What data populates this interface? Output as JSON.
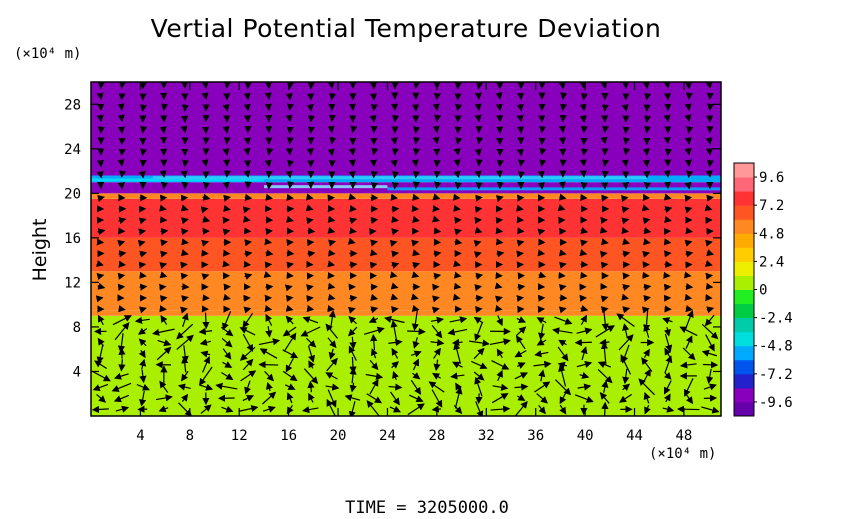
{
  "chart_data": {
    "type": "heatmap",
    "title": "Vertial Potential Temperature Deviation",
    "ylabel": "Height",
    "y_unit_label": "(×10⁴ m)",
    "x_unit_label": "(×10⁴ m)",
    "footer": "TIME = 3205000.0",
    "xlim": [
      0,
      51
    ],
    "ylim": [
      0,
      30
    ],
    "x_ticks": [
      "4",
      "8",
      "12",
      "16",
      "20",
      "24",
      "28",
      "32",
      "36",
      "40",
      "44",
      "48"
    ],
    "x_tick_values": [
      4,
      8,
      12,
      16,
      20,
      24,
      28,
      32,
      36,
      40,
      44,
      48
    ],
    "y_ticks": [
      "4",
      "8",
      "12",
      "16",
      "20",
      "24",
      "28"
    ],
    "y_tick_values": [
      4,
      8,
      12,
      16,
      20,
      24,
      28
    ],
    "colorbar": {
      "ticks": [
        "9.6",
        "7.2",
        "4.8",
        "2.4",
        "0",
        "-2.4",
        "-4.8",
        "-7.2",
        "-9.6"
      ],
      "tick_values": [
        9.6,
        7.2,
        4.8,
        2.4,
        0,
        -2.4,
        -4.8,
        -7.2,
        -9.6
      ],
      "range": [
        -10.8,
        10.8
      ],
      "colors": [
        "#6600aa",
        "#8800bb",
        "#2222cc",
        "#0055ee",
        "#00aaff",
        "#00dddd",
        "#00ccaa",
        "#00cc44",
        "#22ee22",
        "#aaee00",
        "#eeee00",
        "#ffcc00",
        "#ffaa00",
        "#ff8822",
        "#ff5522",
        "#ff3333",
        "#ff6677",
        "#ff9999"
      ]
    },
    "field_bands": [
      {
        "y_from": 0,
        "y_to": 9,
        "value": 1.0,
        "label": "green"
      },
      {
        "y_from": 9,
        "y_to": 9.5,
        "value": 4.8,
        "label": "yellow"
      },
      {
        "y_from": 9.5,
        "y_to": 13,
        "value": 5.8,
        "label": "orange"
      },
      {
        "y_from": 13,
        "y_to": 16,
        "value": 7.0,
        "label": "orange-red"
      },
      {
        "y_from": 16,
        "y_to": 19.5,
        "value": 8.0,
        "label": "red"
      },
      {
        "y_from": 19.5,
        "y_to": 20,
        "value": 4.8,
        "label": "yellow"
      },
      {
        "y_from": 20,
        "y_to": 21,
        "value": -9.6,
        "label": "purple"
      },
      {
        "y_from": 21,
        "y_to": 21.6,
        "value": -5.0,
        "label": "blue"
      },
      {
        "y_from": 21.6,
        "y_to": 30,
        "value": -9.6,
        "label": "purple"
      }
    ],
    "vectors": "wind field arrows over grid"
  }
}
